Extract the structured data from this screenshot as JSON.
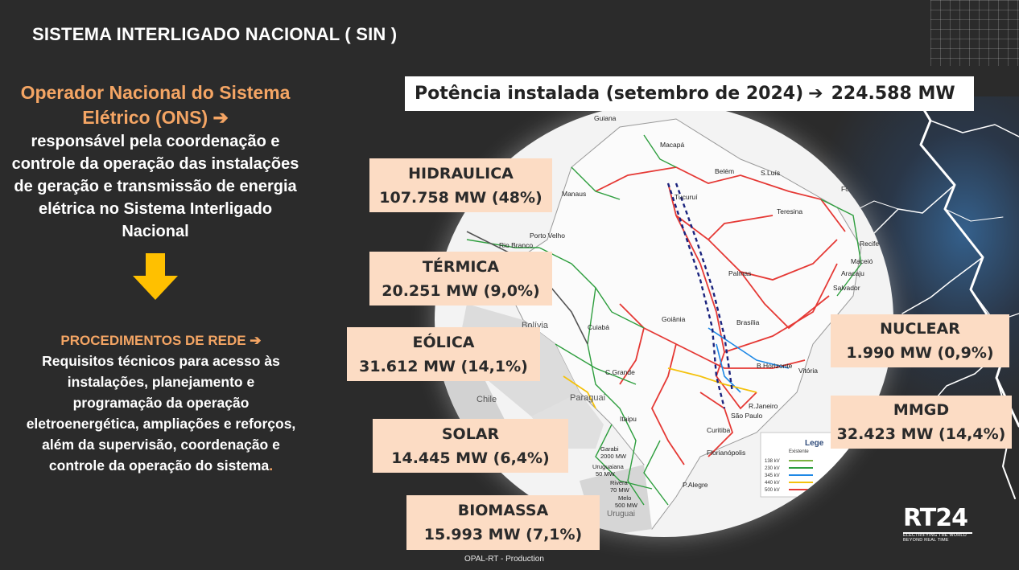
{
  "slide": {
    "title": "SISTEMA INTERLIGADO NACIONAL ( SIN )",
    "footer": "OPAL-RT - Production"
  },
  "ons": {
    "name": "Operador Nacional do Sistema Elétrico (ONS)",
    "arrow": "➔",
    "description": "responsável pela coordenação e controle da operação das instalações de geração e transmissão de energia elétrica no Sistema Interligado Nacional"
  },
  "procedimentos": {
    "title": "PROCEDIMENTOS DE REDE ➔",
    "description": "Requisitos técnicos para acesso às instalações,  planejamento e programação da operação eletroenergética, ampliações e reforços, além da supervisão, coordenação e controle da operação do sistema",
    "end_mark": "."
  },
  "capacity": {
    "label": "Potência instalada (setembro de  2024)",
    "arrow": "➔",
    "value": "224.588 MW"
  },
  "sources": {
    "hidraulica": {
      "name": "HIDRAULICA",
      "value": "107.758 MW (48%)"
    },
    "termica": {
      "name": "TÉRMICA",
      "value": "20.251 MW (9,0%)"
    },
    "eolica": {
      "name": "EÓLICA",
      "value": "31.612 MW (14,1%)"
    },
    "solar": {
      "name": "SOLAR",
      "value": "14.445 MW (6,4%)"
    },
    "biomassa": {
      "name": "BIOMASSA",
      "value": "15.993 MW (7,1%)"
    },
    "nuclear": {
      "name": "NUCLEAR",
      "value": "1.990 MW (0,9%)"
    },
    "mmgd": {
      "name": "MMGD",
      "value": "32.423 MW (14,4%)"
    }
  },
  "map": {
    "labels": {
      "guiana": "Guiana",
      "macapa": "Macapá",
      "belem": "Belém",
      "sao_luis": "S.Luís",
      "fortaleza": "Fortaleza",
      "manaus": "Manaus",
      "tucurui": "Tucuruí",
      "teresina": "Teresina",
      "recife": "Recife",
      "rio_branco": "Rio Branco",
      "porto_velho": "Porto Velho",
      "maceio": "Maceió",
      "aracaju": "Aracaju",
      "palmas": "Palmas",
      "salvador": "Salvador",
      "bolivia": "Bolívia",
      "cuiaba": "Cuiabá",
      "goiania": "Goiânia",
      "brasilia": "Brasília",
      "b_horizonte": "B.Horizonte",
      "vitoria": "Vitória",
      "c_grande": "C.Grande",
      "paraguai": "Paraguai",
      "r_janeiro": "R.Janeiro",
      "sao_paulo": "São Paulo",
      "chile": "Chile",
      "itaipu": "Itaipu",
      "curitiba": "Curitiba",
      "garabi": "Garabi",
      "garabi_mw": "2000 MW",
      "florianopolis": "Florianópolis",
      "uruguaiana": "Uruguaiana",
      "uruguaiana_mw": "50 MW",
      "rivera": "Rivera",
      "rivera_mw": "70 MW",
      "p_alegre": "P.Alegre",
      "melo": "Melo",
      "melo_mw": "500 MW",
      "uruguai": "Uruguai",
      "legend": "Lege",
      "legend_col": "Existente",
      "kv138": "138 kV",
      "kv230": "230 kV",
      "kv345": "345 kV",
      "kv440": "440 kV",
      "kv500": "500 kV"
    },
    "colors": {
      "kv500": "#e53935",
      "kv230": "#2e9e3e",
      "kv345": "#1e88e5",
      "kv440": "#f4c20d",
      "hvdc": "#1a237e"
    }
  },
  "branding": {
    "logo": "RT24",
    "tagline": "ELECTRIFYING THE WORLD BEYOND REAL TIME"
  },
  "colors": {
    "background": "#2b2b2b",
    "accent_orange": "#f4a564",
    "arrow_yellow": "#ffc000",
    "box_fill": "#fcdcc4"
  }
}
